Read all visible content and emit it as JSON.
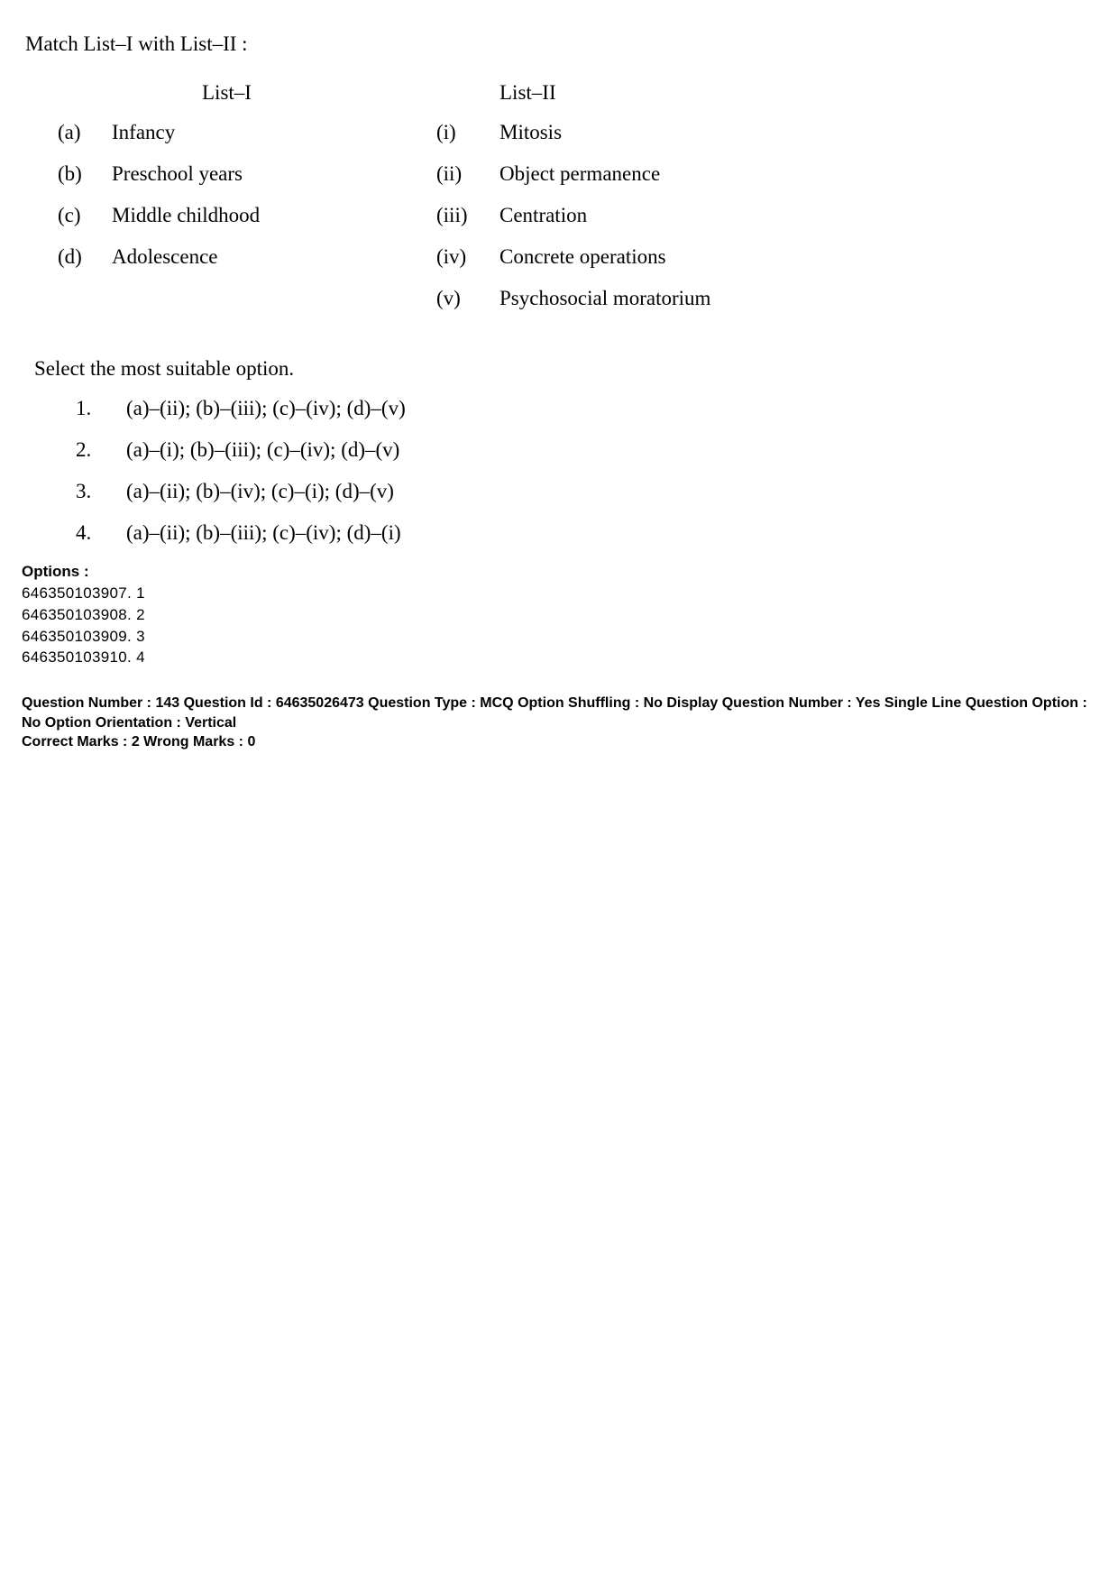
{
  "question": {
    "title": "Match List–I with List–II :",
    "list1_heading": "List–I",
    "list2_heading": "List–II",
    "list1": [
      {
        "marker": "(a)",
        "text": "Infancy"
      },
      {
        "marker": "(b)",
        "text": "Preschool years"
      },
      {
        "marker": "(c)",
        "text": "Middle childhood"
      },
      {
        "marker": "(d)",
        "text": "Adolescence"
      }
    ],
    "list2": [
      {
        "marker": "(i)",
        "text": "Mitosis"
      },
      {
        "marker": "(ii)",
        "text": "Object permanence"
      },
      {
        "marker": "(iii)",
        "text": "Centration"
      },
      {
        "marker": "(iv)",
        "text": "Concrete operations"
      },
      {
        "marker": "(v)",
        "text": "Psychosocial moratorium"
      }
    ],
    "select_instruction": "Select the most suitable option.",
    "answers": [
      {
        "num": "1.",
        "text": "(a)–(ii); (b)–(iii); (c)–(iv); (d)–(v)"
      },
      {
        "num": "2.",
        "text": "(a)–(i); (b)–(iii); (c)–(iv); (d)–(v)"
      },
      {
        "num": "3.",
        "text": "(a)–(ii); (b)–(iv); (c)–(i); (d)–(v)"
      },
      {
        "num": "4.",
        "text": "(a)–(ii); (b)–(iii); (c)–(iv); (d)–(i)"
      }
    ]
  },
  "options_section": {
    "header": "Options :",
    "lines": [
      "646350103907. 1",
      "646350103908. 2",
      "646350103909. 3",
      "646350103910. 4"
    ]
  },
  "meta": {
    "line1": "Question Number : 143  Question Id : 64635026473  Question Type : MCQ  Option Shuffling : No  Display Question Number : Yes  Single Line Question Option : No  Option Orientation : Vertical",
    "line2": "Correct Marks : 2  Wrong Marks : 0"
  },
  "style": {
    "body_font_family": "Times New Roman",
    "body_font_size_pt": 17,
    "meta_font_family": "Arial",
    "meta_font_size_pt": 12,
    "options_font_family": "Verdana",
    "text_color": "#000000",
    "background_color": "#ffffff"
  }
}
